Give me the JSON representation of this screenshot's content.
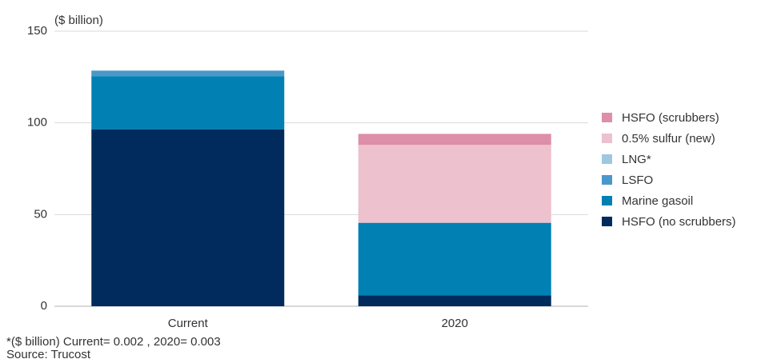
{
  "chart_data": {
    "type": "bar",
    "stacked": true,
    "unit_label": "($ billion)",
    "categories": [
      "Current",
      "2020"
    ],
    "ylim": [
      0,
      150
    ],
    "yticks": [
      0,
      50,
      100,
      150
    ],
    "grid": "horizontal",
    "legend_position": "right",
    "series": [
      {
        "name": "HSFO (no scrubbers)",
        "color": "#002b5c",
        "values": [
          96.5,
          6.0
        ]
      },
      {
        "name": "Marine gasoil",
        "color": "#0080b3",
        "values": [
          29.0,
          39.5
        ]
      },
      {
        "name": "LSFO",
        "color": "#4a98c9",
        "values": [
          3.0,
          0
        ]
      },
      {
        "name": "LNG*",
        "color": "#9ec8e0",
        "values": [
          0.002,
          0.003
        ]
      },
      {
        "name": "0.5% sulfur (new)",
        "color": "#edc1ce",
        "values": [
          0,
          42.5
        ]
      },
      {
        "name": "HSFO (scrubbers)",
        "color": "#de8ea8",
        "values": [
          0,
          6.0
        ]
      }
    ]
  },
  "footnotes": {
    "lng_note": "*($ billion) Current= 0.002 , 2020= 0.003",
    "source": "Source: Trucost"
  }
}
